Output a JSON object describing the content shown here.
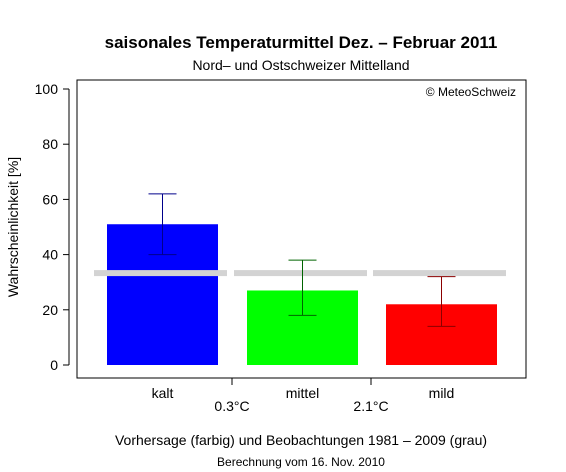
{
  "chart_data": {
    "type": "bar",
    "title": "saisonales Temperaturmittel Dez. – Februar 2011",
    "subtitle": "Nord– und Ostschweizer Mittelland",
    "copyright": "© MeteoSchweiz",
    "ylabel": "Wahrscheinlichkeit [%]",
    "xlabel": "Vorhersage (farbig) und Beobachtungen 1981 – 2009 (grau)",
    "footnote": "Berechnung vom 16. Nov. 2010",
    "ylim": [
      0,
      100
    ],
    "yticks": [
      0,
      20,
      40,
      60,
      80,
      100
    ],
    "categories": [
      "kalt",
      "mittel",
      "mild"
    ],
    "values": [
      51,
      27,
      22
    ],
    "error_low": [
      40,
      18,
      14
    ],
    "error_high": [
      62,
      38,
      32
    ],
    "colors": [
      "#0000ff",
      "#00ff00",
      "#ff0000"
    ],
    "error_colors": [
      "#00008b",
      "#006400",
      "#8b0000"
    ],
    "climatology": 33.3,
    "climatology_color": "#d3d3d3",
    "thresholds": [
      "0.3°C",
      "2.1°C"
    ],
    "grid": false
  }
}
